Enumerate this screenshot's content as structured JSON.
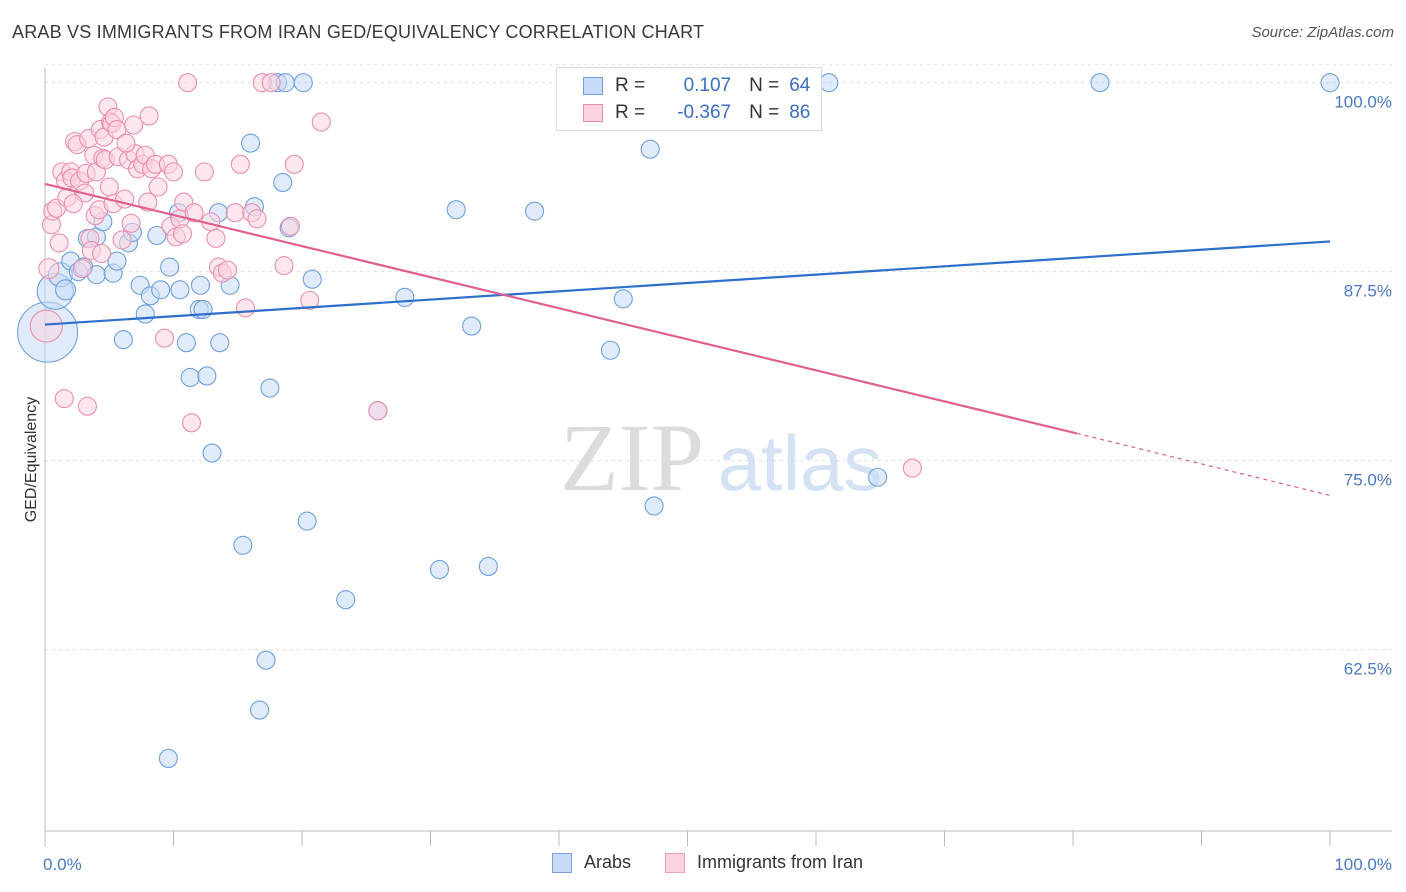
{
  "title": "ARAB VS IMMIGRANTS FROM IRAN GED/EQUIVALENCY CORRELATION CHART",
  "source": "Source: ZipAtlas.com",
  "watermark": {
    "zip": "ZIP",
    "atlas": "atlas"
  },
  "legend": {
    "r_label": "R =",
    "n_label": "N =",
    "rows": [
      {
        "r": "0.107",
        "n": "64",
        "color": "#a9c8f0",
        "border": "#6fa0de"
      },
      {
        "r": "-0.367",
        "n": "86",
        "color": "#f7bfd0",
        "border": "#e98fae"
      }
    ]
  },
  "bottom_legend": [
    {
      "label": "Arabs",
      "color": "#c5dbf7",
      "border": "#7aa6e0"
    },
    {
      "label": "Immigrants from Iran",
      "color": "#fbd3df",
      "border": "#eaa0b9"
    }
  ],
  "chart_data": {
    "type": "scatter",
    "title": "ARAB VS IMMIGRANTS FROM IRAN GED/EQUIVALENCY CORRELATION CHART",
    "xlabel": "",
    "ylabel": "GED/Equivalency",
    "xlim": [
      0,
      100
    ],
    "ylim": [
      50.5,
      101.5
    ],
    "x_tick_labels": [
      "0.0%",
      "100.0%"
    ],
    "y_ticks": [
      62.5,
      75.0,
      87.5,
      100.0
    ],
    "y_tick_labels": [
      "62.5%",
      "75.0%",
      "87.5%",
      "100.0%"
    ],
    "grid": true,
    "series": [
      {
        "name": "Arabs",
        "color": "#6fa0de",
        "fill": "#c5dbf7",
        "trend": {
          "x": [
            0,
            100
          ],
          "y": [
            84.0,
            89.5
          ],
          "color": "#2e6fcb"
        },
        "points": [
          {
            "x": 0.2,
            "y": 83.5,
            "s": 30
          },
          {
            "x": 0.8,
            "y": 86.2,
            "s": 18
          },
          {
            "x": 1.2,
            "y": 87.3,
            "s": 12
          },
          {
            "x": 1.6,
            "y": 86.3,
            "s": 10
          },
          {
            "x": 2.0,
            "y": 88.2,
            "s": 9
          },
          {
            "x": 2.6,
            "y": 87.5,
            "s": 9
          },
          {
            "x": 3.0,
            "y": 87.8,
            "s": 9
          },
          {
            "x": 3.3,
            "y": 89.7,
            "s": 9
          },
          {
            "x": 4.0,
            "y": 89.8,
            "s": 9
          },
          {
            "x": 4.0,
            "y": 87.3,
            "s": 9
          },
          {
            "x": 4.5,
            "y": 90.8,
            "s": 9
          },
          {
            "x": 5.3,
            "y": 87.4,
            "s": 9
          },
          {
            "x": 5.6,
            "y": 88.2,
            "s": 9
          },
          {
            "x": 6.1,
            "y": 83.0,
            "s": 9
          },
          {
            "x": 6.5,
            "y": 89.4,
            "s": 9
          },
          {
            "x": 6.8,
            "y": 90.1,
            "s": 9
          },
          {
            "x": 7.4,
            "y": 86.6,
            "s": 9
          },
          {
            "x": 7.8,
            "y": 84.7,
            "s": 9
          },
          {
            "x": 8.2,
            "y": 85.9,
            "s": 9
          },
          {
            "x": 8.7,
            "y": 89.9,
            "s": 9
          },
          {
            "x": 9.0,
            "y": 86.3,
            "s": 9
          },
          {
            "x": 9.6,
            "y": 55.3,
            "s": 9
          },
          {
            "x": 9.7,
            "y": 87.8,
            "s": 9
          },
          {
            "x": 10.4,
            "y": 91.4,
            "s": 9
          },
          {
            "x": 10.5,
            "y": 86.3,
            "s": 9
          },
          {
            "x": 11.0,
            "y": 82.8,
            "s": 9
          },
          {
            "x": 11.3,
            "y": 80.5,
            "s": 9
          },
          {
            "x": 12.0,
            "y": 85.0,
            "s": 9
          },
          {
            "x": 12.1,
            "y": 86.6,
            "s": 9
          },
          {
            "x": 12.6,
            "y": 80.6,
            "s": 9
          },
          {
            "x": 13.0,
            "y": 75.5,
            "s": 9
          },
          {
            "x": 13.5,
            "y": 91.4,
            "s": 9
          },
          {
            "x": 13.6,
            "y": 82.8,
            "s": 9
          },
          {
            "x": 14.4,
            "y": 86.6,
            "s": 9
          },
          {
            "x": 15.4,
            "y": 69.4,
            "s": 9
          },
          {
            "x": 16.0,
            "y": 96.0,
            "s": 9
          },
          {
            "x": 16.3,
            "y": 91.8,
            "s": 9
          },
          {
            "x": 16.7,
            "y": 58.5,
            "s": 9
          },
          {
            "x": 17.2,
            "y": 61.8,
            "s": 9
          },
          {
            "x": 17.5,
            "y": 79.8,
            "s": 9
          },
          {
            "x": 18.1,
            "y": 100.0,
            "s": 9
          },
          {
            "x": 18.5,
            "y": 93.4,
            "s": 9
          },
          {
            "x": 18.7,
            "y": 100.0,
            "s": 9
          },
          {
            "x": 19.0,
            "y": 90.4,
            "s": 9
          },
          {
            "x": 20.1,
            "y": 100.0,
            "s": 9
          },
          {
            "x": 20.4,
            "y": 71.0,
            "s": 9
          },
          {
            "x": 20.8,
            "y": 87.0,
            "s": 9
          },
          {
            "x": 23.4,
            "y": 65.8,
            "s": 9
          },
          {
            "x": 25.9,
            "y": 78.3,
            "s": 9
          },
          {
            "x": 28.0,
            "y": 85.8,
            "s": 9
          },
          {
            "x": 30.7,
            "y": 67.8,
            "s": 9
          },
          {
            "x": 32.0,
            "y": 91.6,
            "s": 9
          },
          {
            "x": 33.2,
            "y": 83.9,
            "s": 9
          },
          {
            "x": 34.5,
            "y": 68.0,
            "s": 9
          },
          {
            "x": 38.1,
            "y": 91.5,
            "s": 9
          },
          {
            "x": 44.0,
            "y": 82.3,
            "s": 9
          },
          {
            "x": 45.0,
            "y": 85.7,
            "s": 9
          },
          {
            "x": 47.1,
            "y": 95.6,
            "s": 9
          },
          {
            "x": 47.4,
            "y": 72.0,
            "s": 9
          },
          {
            "x": 61.0,
            "y": 100.0,
            "s": 9
          },
          {
            "x": 64.8,
            "y": 73.9,
            "s": 9
          },
          {
            "x": 82.1,
            "y": 100.0,
            "s": 9
          },
          {
            "x": 100.0,
            "y": 100.0,
            "s": 9
          },
          {
            "x": 12.3,
            "y": 85.0,
            "s": 9
          }
        ]
      },
      {
        "name": "Immigrants from Iran",
        "color": "#e98fae",
        "fill": "#fbd3df",
        "trend": {
          "x": [
            0,
            80.3
          ],
          "y": [
            93.3,
            76.8
          ],
          "dash_to": [
            100,
            72.7
          ],
          "color": "#e0608e"
        },
        "points": [
          {
            "x": 0.1,
            "y": 83.9,
            "s": 16
          },
          {
            "x": 0.3,
            "y": 87.7,
            "s": 10
          },
          {
            "x": 0.5,
            "y": 90.6,
            "s": 9
          },
          {
            "x": 0.6,
            "y": 91.5,
            "s": 9
          },
          {
            "x": 0.9,
            "y": 91.7,
            "s": 9
          },
          {
            "x": 1.1,
            "y": 89.4,
            "s": 9
          },
          {
            "x": 1.3,
            "y": 94.1,
            "s": 9
          },
          {
            "x": 1.5,
            "y": 79.1,
            "s": 9
          },
          {
            "x": 1.6,
            "y": 93.5,
            "s": 9
          },
          {
            "x": 1.7,
            "y": 92.4,
            "s": 9
          },
          {
            "x": 2.0,
            "y": 94.1,
            "s": 9
          },
          {
            "x": 2.1,
            "y": 93.7,
            "s": 9
          },
          {
            "x": 2.3,
            "y": 96.1,
            "s": 9
          },
          {
            "x": 2.5,
            "y": 95.9,
            "s": 9
          },
          {
            "x": 2.7,
            "y": 93.5,
            "s": 9
          },
          {
            "x": 2.9,
            "y": 87.7,
            "s": 9
          },
          {
            "x": 3.1,
            "y": 92.7,
            "s": 9
          },
          {
            "x": 3.2,
            "y": 94.0,
            "s": 9
          },
          {
            "x": 3.3,
            "y": 78.6,
            "s": 9
          },
          {
            "x": 3.4,
            "y": 96.3,
            "s": 9
          },
          {
            "x": 3.5,
            "y": 89.7,
            "s": 9
          },
          {
            "x": 3.6,
            "y": 88.9,
            "s": 9
          },
          {
            "x": 3.8,
            "y": 95.2,
            "s": 9
          },
          {
            "x": 3.9,
            "y": 91.2,
            "s": 9
          },
          {
            "x": 4.0,
            "y": 94.1,
            "s": 9
          },
          {
            "x": 4.2,
            "y": 91.6,
            "s": 9
          },
          {
            "x": 4.3,
            "y": 96.9,
            "s": 9
          },
          {
            "x": 4.5,
            "y": 95.0,
            "s": 9
          },
          {
            "x": 4.6,
            "y": 96.4,
            "s": 9
          },
          {
            "x": 4.7,
            "y": 94.9,
            "s": 9
          },
          {
            "x": 4.9,
            "y": 98.4,
            "s": 9
          },
          {
            "x": 5.0,
            "y": 93.1,
            "s": 9
          },
          {
            "x": 5.1,
            "y": 97.4,
            "s": 9
          },
          {
            "x": 5.2,
            "y": 97.3,
            "s": 9
          },
          {
            "x": 5.3,
            "y": 92.0,
            "s": 9
          },
          {
            "x": 5.4,
            "y": 97.7,
            "s": 9
          },
          {
            "x": 5.6,
            "y": 96.9,
            "s": 9
          },
          {
            "x": 5.7,
            "y": 95.1,
            "s": 9
          },
          {
            "x": 6.0,
            "y": 89.6,
            "s": 9
          },
          {
            "x": 6.2,
            "y": 92.3,
            "s": 9
          },
          {
            "x": 6.5,
            "y": 94.9,
            "s": 9
          },
          {
            "x": 6.7,
            "y": 90.7,
            "s": 9
          },
          {
            "x": 6.9,
            "y": 97.2,
            "s": 9
          },
          {
            "x": 7.0,
            "y": 95.3,
            "s": 9
          },
          {
            "x": 7.2,
            "y": 94.3,
            "s": 9
          },
          {
            "x": 7.6,
            "y": 94.6,
            "s": 9
          },
          {
            "x": 7.8,
            "y": 95.2,
            "s": 9
          },
          {
            "x": 8.0,
            "y": 92.1,
            "s": 9
          },
          {
            "x": 8.3,
            "y": 94.3,
            "s": 9
          },
          {
            "x": 8.6,
            "y": 94.6,
            "s": 9
          },
          {
            "x": 8.8,
            "y": 93.1,
            "s": 9
          },
          {
            "x": 9.3,
            "y": 83.1,
            "s": 9
          },
          {
            "x": 9.6,
            "y": 94.6,
            "s": 9
          },
          {
            "x": 9.8,
            "y": 90.5,
            "s": 9
          },
          {
            "x": 10.0,
            "y": 94.1,
            "s": 9
          },
          {
            "x": 10.2,
            "y": 89.8,
            "s": 9
          },
          {
            "x": 10.5,
            "y": 91.0,
            "s": 9
          },
          {
            "x": 10.7,
            "y": 90.0,
            "s": 9
          },
          {
            "x": 10.8,
            "y": 92.1,
            "s": 9
          },
          {
            "x": 11.1,
            "y": 100.0,
            "s": 9
          },
          {
            "x": 11.4,
            "y": 77.5,
            "s": 9
          },
          {
            "x": 11.6,
            "y": 91.4,
            "s": 9
          },
          {
            "x": 12.4,
            "y": 94.1,
            "s": 9
          },
          {
            "x": 12.9,
            "y": 90.8,
            "s": 9
          },
          {
            "x": 13.3,
            "y": 89.7,
            "s": 9
          },
          {
            "x": 13.5,
            "y": 87.8,
            "s": 9
          },
          {
            "x": 13.8,
            "y": 87.4,
            "s": 9
          },
          {
            "x": 14.2,
            "y": 87.6,
            "s": 9
          },
          {
            "x": 14.8,
            "y": 91.4,
            "s": 9
          },
          {
            "x": 15.2,
            "y": 94.6,
            "s": 9
          },
          {
            "x": 15.6,
            "y": 85.1,
            "s": 9
          },
          {
            "x": 16.1,
            "y": 91.4,
            "s": 9
          },
          {
            "x": 16.5,
            "y": 91.0,
            "s": 9
          },
          {
            "x": 16.9,
            "y": 100.0,
            "s": 9
          },
          {
            "x": 17.6,
            "y": 100.0,
            "s": 9
          },
          {
            "x": 18.6,
            "y": 87.9,
            "s": 9
          },
          {
            "x": 19.1,
            "y": 90.5,
            "s": 9
          },
          {
            "x": 19.4,
            "y": 94.6,
            "s": 9
          },
          {
            "x": 20.6,
            "y": 85.6,
            "s": 9
          },
          {
            "x": 21.5,
            "y": 97.4,
            "s": 9
          },
          {
            "x": 25.9,
            "y": 78.3,
            "s": 9
          },
          {
            "x": 67.5,
            "y": 74.5,
            "s": 9
          },
          {
            "x": 4.4,
            "y": 88.7,
            "s": 9
          },
          {
            "x": 2.2,
            "y": 92.0,
            "s": 9
          },
          {
            "x": 6.3,
            "y": 96.0,
            "s": 9
          },
          {
            "x": 8.1,
            "y": 97.8,
            "s": 9
          }
        ]
      }
    ]
  }
}
